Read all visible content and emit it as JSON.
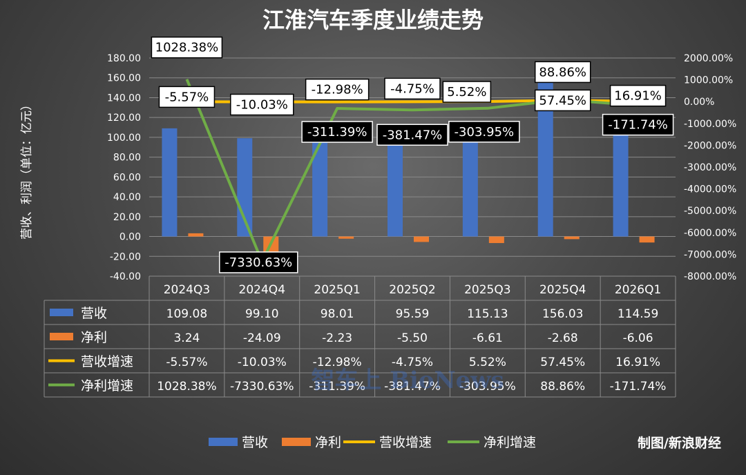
{
  "chart_data": {
    "type": "bar+line",
    "title": "江淮汽车季度业绩走势",
    "ylabel": "营收、利润（单位：亿元）",
    "categories": [
      "2024Q3",
      "2024Q4",
      "2025Q1",
      "2025Q2",
      "2025Q3",
      "2025Q4",
      "2026Q1"
    ],
    "y_left": {
      "min": -40,
      "max": 180,
      "step": 20,
      "tick_labels": [
        "180.00",
        "160.00",
        "140.00",
        "120.00",
        "100.00",
        "80.00",
        "60.00",
        "40.00",
        "20.00",
        "0.00",
        "-20.00",
        "-40.00"
      ]
    },
    "y_right": {
      "min": -8000,
      "max": 2000,
      "step": 1000,
      "tick_labels": [
        "2000.00%",
        "1000.00%",
        "0.00%",
        "-1000.00%",
        "-2000.00%",
        "-3000.00%",
        "-4000.00%",
        "-5000.00%",
        "-6000.00%",
        "-7000.00%",
        "-8000.00%"
      ]
    },
    "series": [
      {
        "name": "营收",
        "type": "bar",
        "axis": "left",
        "color": "#4472C4",
        "values": [
          109.08,
          99.1,
          98.01,
          95.59,
          115.13,
          156.03,
          114.59
        ],
        "labels": [
          "109.08",
          "99.10",
          "98.01",
          "95.59",
          "115.13",
          "156.03",
          "114.59"
        ]
      },
      {
        "name": "净利",
        "type": "bar",
        "axis": "left",
        "color": "#ED7D31",
        "values": [
          3.24,
          -24.09,
          -2.23,
          -5.5,
          -6.61,
          -2.68,
          -6.06
        ],
        "labels": [
          "3.24",
          "-24.09",
          "-2.23",
          "-5.50",
          "-6.61",
          "-2.68",
          "-6.06"
        ]
      },
      {
        "name": "营收增速",
        "type": "line",
        "axis": "right",
        "color": "#FFC000",
        "values": [
          -5.57,
          -10.03,
          -12.98,
          -4.75,
          5.52,
          57.45,
          16.91
        ],
        "labels": [
          "-5.57%",
          "-10.03%",
          "-12.98%",
          "-4.75%",
          "5.52%",
          "57.45%",
          "16.91%"
        ]
      },
      {
        "name": "净利增速",
        "type": "line",
        "axis": "right",
        "color": "#70AD47",
        "values": [
          1028.38,
          -7330.63,
          -311.39,
          -381.47,
          -303.95,
          88.86,
          -171.74
        ],
        "labels": [
          "1028.38%",
          "-7330.63%",
          "-311.39%",
          "-381.47%",
          "-303.95%",
          "88.86%",
          "-171.74%"
        ]
      }
    ],
    "legend_position": "bottom",
    "grid": true
  },
  "source": "制图/新浪财经",
  "watermark": "智车上 BioNews"
}
